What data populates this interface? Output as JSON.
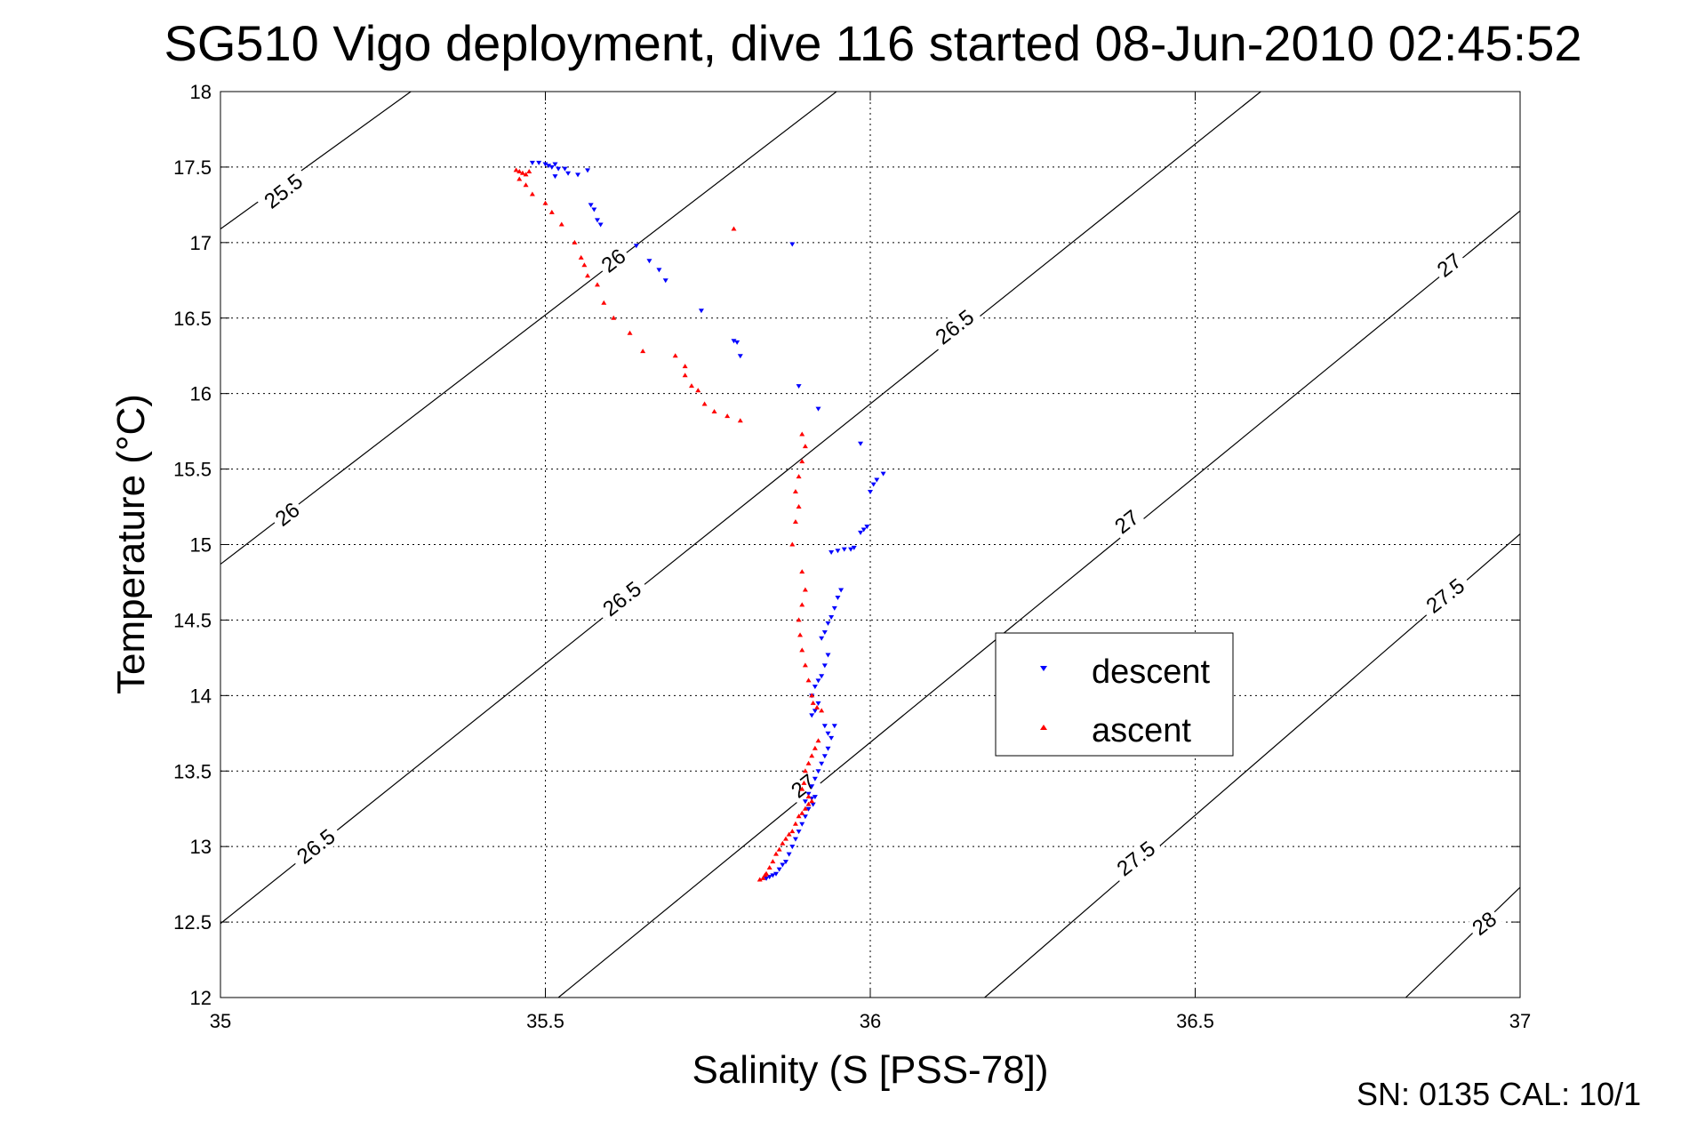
{
  "chart_data": {
    "type": "scatter",
    "title": "SG510 Vigo deployment, dive 116 started 08-Jun-2010 02:45:52",
    "xlabel": "Salinity (S [PSS-78])",
    "ylabel": "Temperature (°C)",
    "xlim": [
      35,
      37
    ],
    "ylim": [
      12,
      18
    ],
    "grid": true,
    "x_ticks": [
      "35",
      "35.5",
      "36",
      "36.5",
      "37"
    ],
    "y_ticks": [
      "12",
      "12.5",
      "13",
      "13.5",
      "14",
      "14.5",
      "15",
      "15.5",
      "16",
      "16.5",
      "17",
      "17.5",
      "18"
    ],
    "legend_position": "right-middle",
    "isopycnals": {
      "color": "#000000",
      "lines": [
        {
          "label": "25.5",
          "points": [
            [
              35,
              17.09
            ],
            [
              35.293,
              18
            ]
          ]
        },
        {
          "label": "26",
          "points": [
            [
              35,
              14.87
            ],
            [
              35.948,
              18
            ]
          ]
        },
        {
          "label": "26.5",
          "points": [
            [
              35,
              12.49
            ],
            [
              36.601,
              18
            ]
          ]
        },
        {
          "label": "27",
          "points": [
            [
              35.52,
              12
            ],
            [
              37,
              17.21
            ]
          ]
        },
        {
          "label": "27.5",
          "points": [
            [
              36.176,
              12
            ],
            [
              37,
              15.07
            ]
          ]
        },
        {
          "label": "28",
          "points": [
            [
              36.824,
              12
            ],
            [
              37,
              12.73
            ]
          ]
        }
      ],
      "labels": [
        {
          "text": "25.5",
          "x": 35.097,
          "y": 17.34
        },
        {
          "text": "26",
          "x": 35.103,
          "y": 15.2
        },
        {
          "text": "26",
          "x": 35.605,
          "y": 16.88
        },
        {
          "text": "26.5",
          "x": 35.147,
          "y": 13.0
        },
        {
          "text": "26.5",
          "x": 35.618,
          "y": 14.64
        },
        {
          "text": "26.5",
          "x": 36.13,
          "y": 16.44
        },
        {
          "text": "27",
          "x": 35.897,
          "y": 13.4
        },
        {
          "text": "27",
          "x": 36.395,
          "y": 15.15
        },
        {
          "text": "27",
          "x": 36.891,
          "y": 16.85
        },
        {
          "text": "27.5",
          "x": 36.409,
          "y": 12.92
        },
        {
          "text": "27.5",
          "x": 36.885,
          "y": 14.66
        },
        {
          "text": "28",
          "x": 36.945,
          "y": 12.49
        }
      ]
    },
    "series": [
      {
        "name": "descent",
        "color": "#0000ff",
        "marker": "triangle-down",
        "points": [
          [
            35.48,
            17.53
          ],
          [
            35.49,
            17.53
          ],
          [
            35.5,
            17.52
          ],
          [
            35.505,
            17.51
          ],
          [
            35.51,
            17.5
          ],
          [
            35.515,
            17.52
          ],
          [
            35.52,
            17.49
          ],
          [
            35.53,
            17.49
          ],
          [
            35.515,
            17.44
          ],
          [
            35.535,
            17.46
          ],
          [
            35.55,
            17.45
          ],
          [
            35.565,
            17.48
          ],
          [
            35.57,
            17.25
          ],
          [
            35.575,
            17.22
          ],
          [
            35.58,
            17.15
          ],
          [
            35.585,
            17.12
          ],
          [
            35.64,
            16.98
          ],
          [
            35.66,
            16.88
          ],
          [
            35.675,
            16.82
          ],
          [
            35.685,
            16.75
          ],
          [
            35.74,
            16.55
          ],
          [
            35.79,
            16.35
          ],
          [
            35.795,
            16.34
          ],
          [
            35.8,
            16.25
          ],
          [
            35.88,
            16.99
          ],
          [
            35.89,
            16.05
          ],
          [
            35.92,
            15.9
          ],
          [
            35.985,
            15.67
          ],
          [
            36.02,
            15.47
          ],
          [
            36.01,
            15.43
          ],
          [
            36.005,
            15.4
          ],
          [
            36.0,
            15.35
          ],
          [
            35.995,
            15.12
          ],
          [
            35.99,
            15.1
          ],
          [
            35.985,
            15.08
          ],
          [
            35.975,
            14.98
          ],
          [
            35.97,
            14.97
          ],
          [
            35.96,
            14.97
          ],
          [
            35.95,
            14.96
          ],
          [
            35.94,
            14.95
          ],
          [
            35.955,
            14.7
          ],
          [
            35.95,
            14.65
          ],
          [
            35.945,
            14.58
          ],
          [
            35.94,
            14.52
          ],
          [
            35.935,
            14.48
          ],
          [
            35.93,
            14.42
          ],
          [
            35.925,
            14.38
          ],
          [
            35.935,
            14.27
          ],
          [
            35.93,
            14.2
          ],
          [
            35.925,
            14.13
          ],
          [
            35.92,
            14.1
          ],
          [
            35.915,
            14.06
          ],
          [
            35.91,
            14.0
          ],
          [
            35.92,
            13.95
          ],
          [
            35.915,
            13.9
          ],
          [
            35.91,
            13.87
          ],
          [
            35.93,
            13.8
          ],
          [
            35.935,
            13.75
          ],
          [
            35.94,
            13.72
          ],
          [
            35.945,
            13.8
          ],
          [
            35.935,
            13.65
          ],
          [
            35.93,
            13.6
          ],
          [
            35.925,
            13.55
          ],
          [
            35.92,
            13.5
          ],
          [
            35.915,
            13.45
          ],
          [
            35.91,
            13.4
          ],
          [
            35.905,
            13.35
          ],
          [
            35.9,
            13.3
          ],
          [
            35.91,
            13.32
          ],
          [
            35.915,
            13.33
          ],
          [
            35.912,
            13.28
          ],
          [
            35.905,
            13.25
          ],
          [
            35.9,
            13.2
          ],
          [
            35.895,
            13.15
          ],
          [
            35.89,
            13.1
          ],
          [
            35.885,
            13.05
          ],
          [
            35.88,
            13.0
          ],
          [
            35.875,
            12.95
          ],
          [
            35.87,
            12.9
          ],
          [
            35.865,
            12.88
          ],
          [
            35.86,
            12.85
          ],
          [
            35.855,
            12.82
          ],
          [
            35.85,
            12.81
          ],
          [
            35.845,
            12.8
          ],
          [
            35.84,
            12.79
          ]
        ]
      },
      {
        "name": "ascent",
        "color": "#ff0000",
        "marker": "triangle-up",
        "points": [
          [
            35.455,
            17.48
          ],
          [
            35.46,
            17.47
          ],
          [
            35.465,
            17.46
          ],
          [
            35.47,
            17.45
          ],
          [
            35.475,
            17.47
          ],
          [
            35.46,
            17.42
          ],
          [
            35.47,
            17.38
          ],
          [
            35.48,
            17.32
          ],
          [
            35.5,
            17.26
          ],
          [
            35.51,
            17.2
          ],
          [
            35.525,
            17.12
          ],
          [
            35.545,
            17.0
          ],
          [
            35.555,
            16.9
          ],
          [
            35.56,
            16.85
          ],
          [
            35.565,
            16.78
          ],
          [
            35.58,
            16.72
          ],
          [
            35.59,
            16.6
          ],
          [
            35.605,
            16.5
          ],
          [
            35.63,
            16.4
          ],
          [
            35.65,
            16.28
          ],
          [
            35.7,
            16.25
          ],
          [
            35.715,
            16.18
          ],
          [
            35.715,
            16.12
          ],
          [
            35.725,
            16.05
          ],
          [
            35.735,
            16.02
          ],
          [
            35.745,
            15.93
          ],
          [
            35.76,
            15.88
          ],
          [
            35.78,
            15.85
          ],
          [
            35.8,
            15.82
          ],
          [
            35.79,
            17.09
          ],
          [
            35.895,
            15.73
          ],
          [
            35.9,
            15.65
          ],
          [
            35.895,
            15.55
          ],
          [
            35.89,
            15.45
          ],
          [
            35.885,
            15.35
          ],
          [
            35.89,
            15.25
          ],
          [
            35.885,
            15.15
          ],
          [
            35.88,
            15.0
          ],
          [
            35.895,
            14.82
          ],
          [
            35.9,
            14.7
          ],
          [
            35.895,
            14.6
          ],
          [
            35.89,
            14.5
          ],
          [
            35.892,
            14.4
          ],
          [
            35.895,
            14.3
          ],
          [
            35.9,
            14.2
          ],
          [
            35.905,
            14.1
          ],
          [
            35.91,
            14.0
          ],
          [
            35.912,
            13.95
          ],
          [
            35.918,
            13.92
          ],
          [
            35.925,
            13.9
          ],
          [
            35.92,
            13.7
          ],
          [
            35.915,
            13.65
          ],
          [
            35.91,
            13.6
          ],
          [
            35.905,
            13.55
          ],
          [
            35.9,
            13.5
          ],
          [
            35.898,
            13.42
          ],
          [
            35.895,
            13.38
          ],
          [
            35.905,
            13.33
          ],
          [
            35.91,
            13.3
          ],
          [
            35.905,
            13.28
          ],
          [
            35.9,
            13.25
          ],
          [
            35.895,
            13.22
          ],
          [
            35.89,
            13.2
          ],
          [
            35.885,
            13.15
          ],
          [
            35.88,
            13.1
          ],
          [
            35.875,
            13.08
          ],
          [
            35.87,
            13.05
          ],
          [
            35.865,
            13.02
          ],
          [
            35.86,
            12.98
          ],
          [
            35.855,
            12.95
          ],
          [
            35.85,
            12.9
          ],
          [
            35.845,
            12.86
          ],
          [
            35.84,
            12.82
          ],
          [
            35.835,
            12.79
          ],
          [
            35.83,
            12.78
          ],
          [
            35.838,
            12.81
          ]
        ]
      }
    ],
    "legend": [
      "descent",
      "ascent"
    ]
  },
  "footer": {
    "text": "SN: 0135  CAL: 10/1"
  }
}
